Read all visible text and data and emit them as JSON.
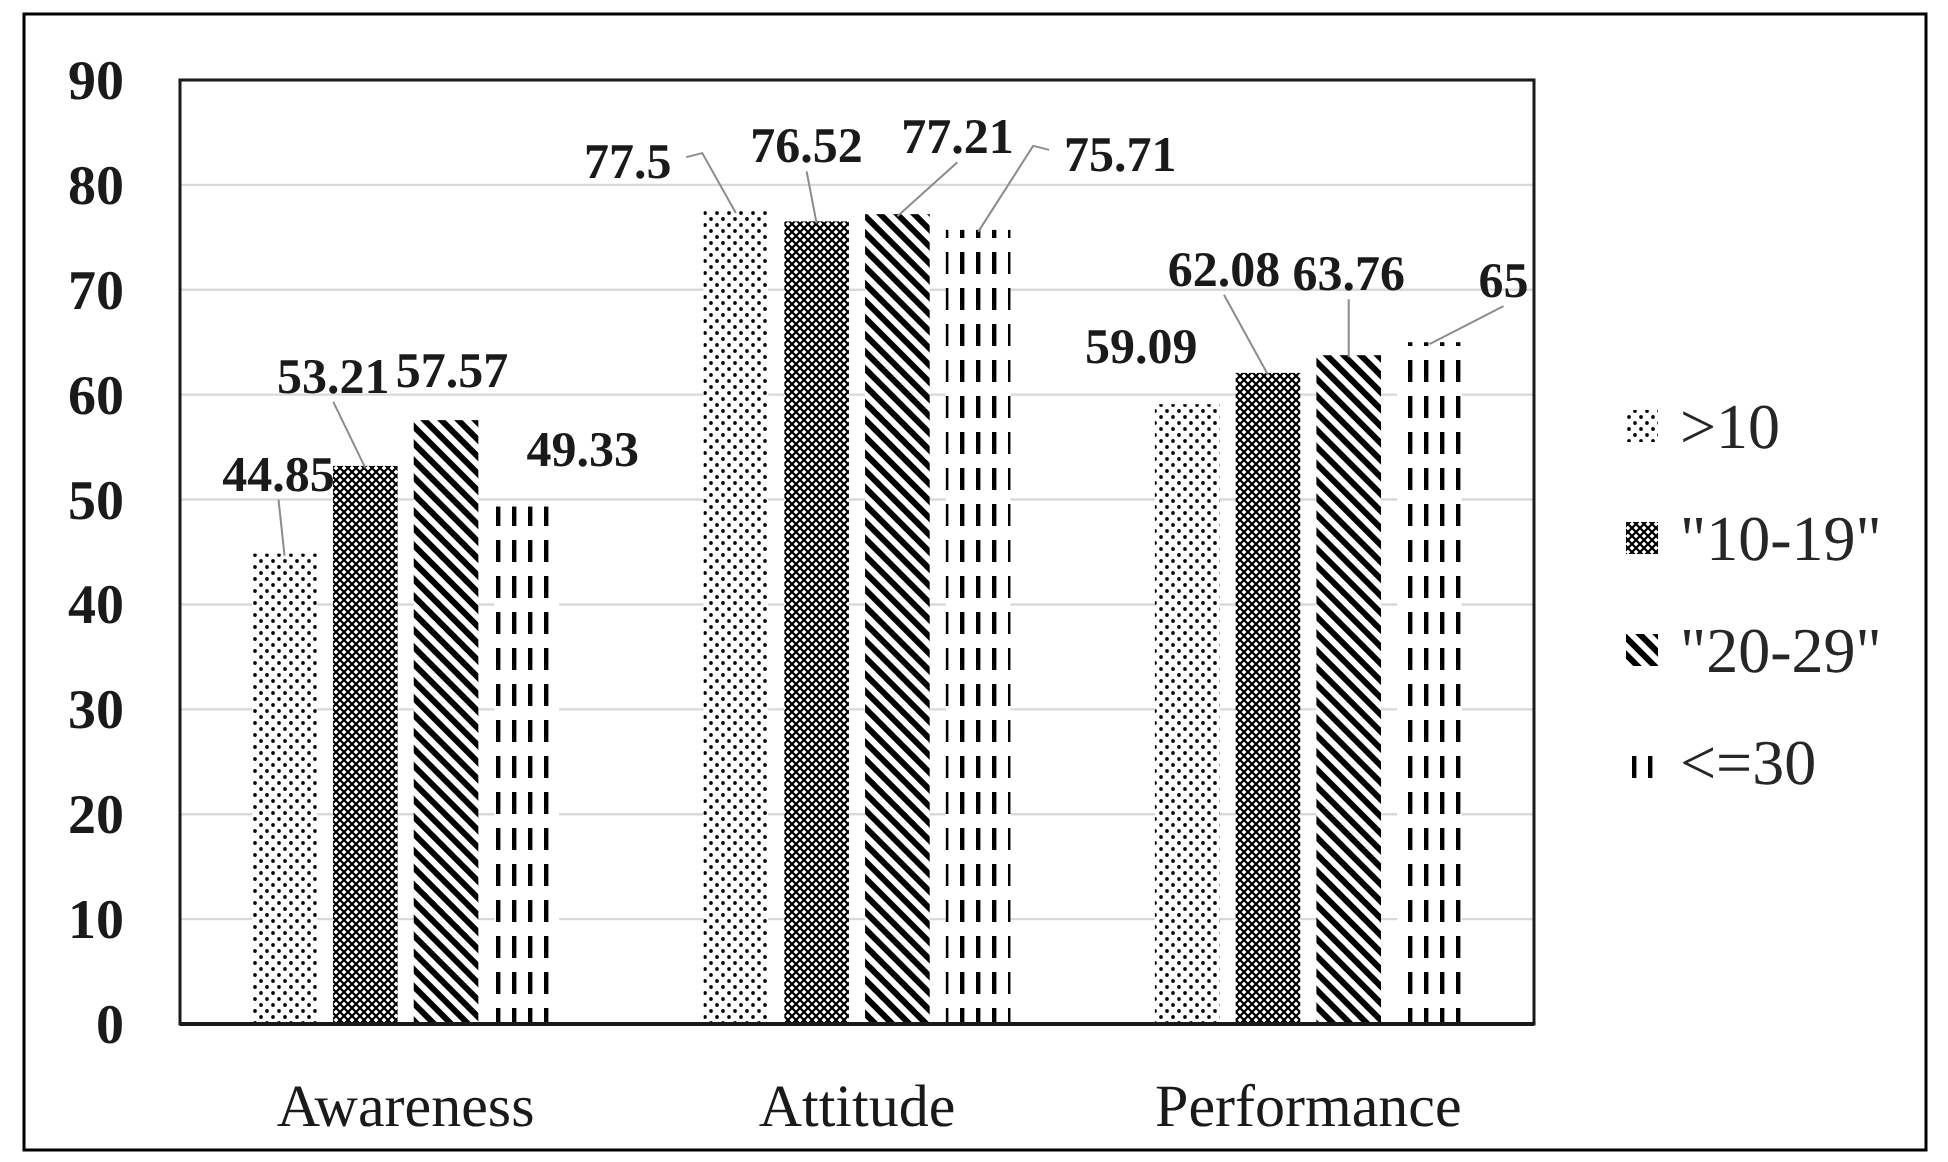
{
  "chart_data": {
    "type": "bar",
    "categories": [
      "Awareness",
      "Attitude",
      "Performance"
    ],
    "series": [
      {
        "name": ">10",
        "color": "#000000",
        "values": [
          44.85,
          77.5,
          59.09
        ]
      },
      {
        "name": "\"10-19\"",
        "color": "#000000",
        "values": [
          53.21,
          76.52,
          62.08
        ]
      },
      {
        "name": "\"20-29\"",
        "color": "#000000",
        "values": [
          57.57,
          77.21,
          63.76
        ]
      },
      {
        "name": "<=30",
        "color": "#000000",
        "values": [
          49.33,
          75.71,
          65
        ]
      }
    ],
    "ylim": [
      0,
      90
    ],
    "yticks": [
      0,
      10,
      20,
      30,
      40,
      50,
      60,
      70,
      80,
      90
    ],
    "grid": "y",
    "legend": "right",
    "data_labels": true
  }
}
